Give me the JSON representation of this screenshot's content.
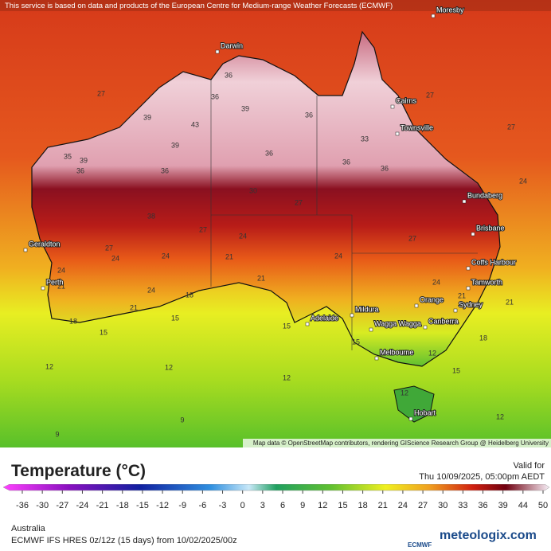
{
  "header": {
    "notice": "This service is based on data and products of the European Centre for Medium-range Weather Forecasts (ECMWF)",
    "attribution": "Map data © OpenStreetMap contributors, rendering GIScience Research Group @ Heidelberg University"
  },
  "cities": [
    "Moresby",
    "Darwin",
    "Cairns",
    "Townsville",
    "Bundaberg",
    "Brisbane",
    "Coffs Harbour",
    "Tamworth",
    "Orange",
    "Sydney",
    "Mildura",
    "Adelaide",
    "Wagga Wagga",
    "Canberra",
    "Melbourne",
    "Hobart",
    "Geraldton",
    "Perth"
  ],
  "contours": [
    27,
    39,
    43,
    39,
    39,
    36,
    36,
    35,
    39,
    36,
    36,
    36,
    36,
    36,
    36,
    33,
    38,
    30,
    27,
    27,
    27,
    24,
    27,
    24,
    24,
    21,
    24,
    24,
    21,
    21,
    24,
    21,
    24,
    21,
    18,
    18,
    15,
    15,
    15,
    15,
    12,
    15,
    18,
    21,
    24,
    12,
    12,
    12,
    12,
    12,
    9,
    9,
    27,
    27
  ],
  "legend": {
    "title": "Temperature (°C)",
    "valid_label": "Valid for",
    "valid_time": "Thu 10/09/2025, 05:00pm AEDT",
    "ticks": [
      -36,
      -30,
      -27,
      -24,
      -21,
      -18,
      -15,
      -12,
      -9,
      -6,
      -3,
      0,
      3,
      6,
      9,
      12,
      15,
      18,
      21,
      24,
      27,
      30,
      33,
      36,
      39,
      44,
      50
    ]
  },
  "footer": {
    "region": "Australia",
    "model": "ECMWF IFS HRES 0z/12z (15 days) from 10/02/2025/00z",
    "logo": "ECMWF",
    "brand": "meteologix.com"
  }
}
